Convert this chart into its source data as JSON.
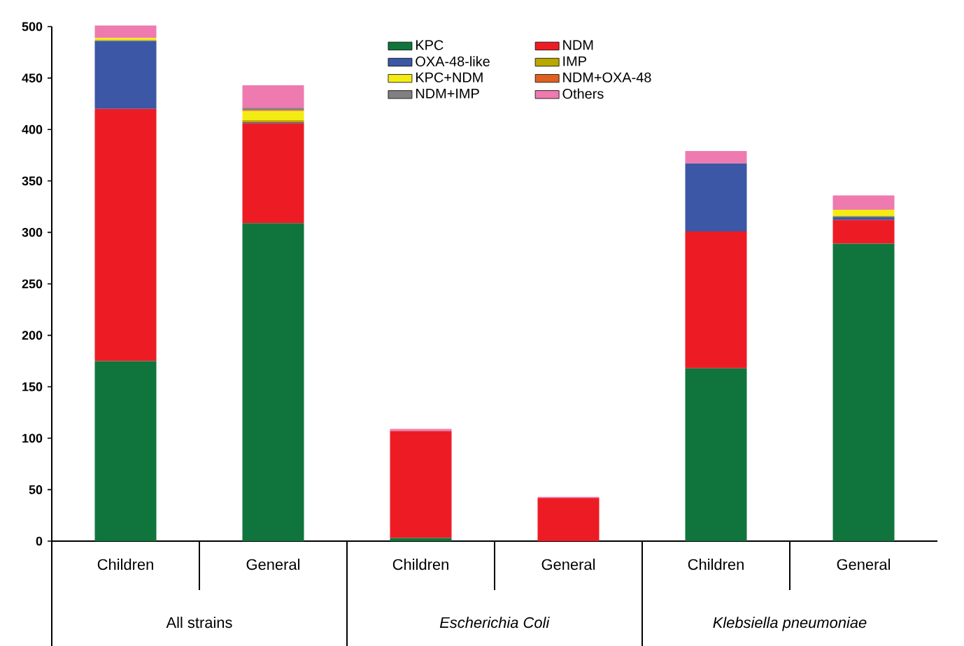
{
  "chart_data": {
    "type": "bar",
    "stacked": true,
    "categories": [
      "Children",
      "General",
      "Children",
      "General",
      "Children",
      "General"
    ],
    "series": [
      {
        "name": "KPC",
        "color": "#10753c",
        "values": [
          175,
          309,
          3,
          0,
          168,
          289
        ]
      },
      {
        "name": "NDM",
        "color": "#ed1c24",
        "values": [
          245,
          97,
          104,
          42,
          133,
          23
        ]
      },
      {
        "name": "OXA-48-like",
        "color": "#3b57a5",
        "values": [
          66,
          1,
          0,
          0,
          66,
          3
        ]
      },
      {
        "name": "IMP",
        "color": "#b8a800",
        "values": [
          1,
          2,
          0,
          0,
          0,
          1
        ]
      },
      {
        "name": "KPC+NDM",
        "color": "#f5eb14",
        "values": [
          2,
          9,
          0,
          0,
          0,
          6
        ]
      },
      {
        "name": "NDM+OXA-48",
        "color": "#e06020",
        "values": [
          0,
          1,
          0,
          0,
          0,
          0
        ]
      },
      {
        "name": "NDM+IMP",
        "color": "#808080",
        "values": [
          0,
          2,
          0,
          0,
          0,
          0
        ]
      },
      {
        "name": "Others",
        "color": "#ee7aaf",
        "values": [
          12,
          22,
          2,
          1,
          12,
          14
        ]
      }
    ],
    "ylim": [
      0,
      500
    ],
    "yticks": [
      0,
      50,
      100,
      150,
      200,
      250,
      300,
      350,
      400,
      450,
      500
    ],
    "grid": false,
    "legend": "top",
    "annotations": [
      "All strains",
      "*Escherichia Coli*",
      "*Klebsiella pneumoniae*"
    ]
  }
}
